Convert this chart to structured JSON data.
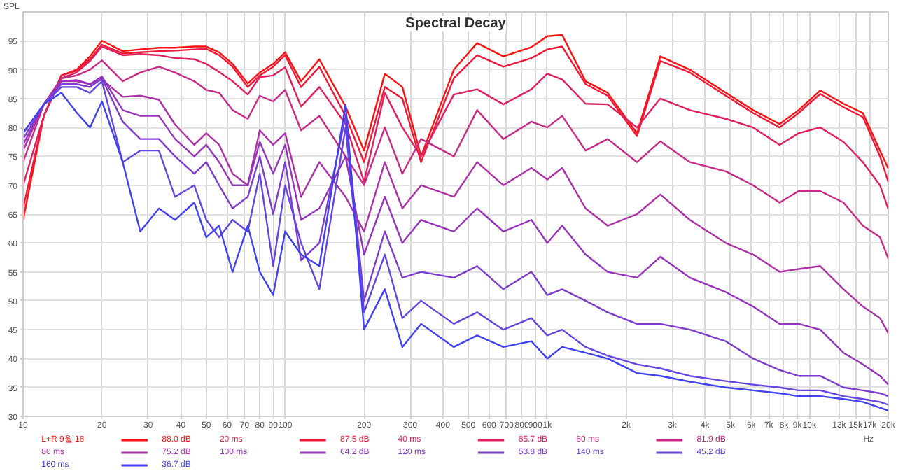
{
  "chart_data": {
    "type": "line",
    "title": "Spectral Decay",
    "ylabel": "SPL",
    "log": "x",
    "grid": true,
    "legend": "bottom",
    "marker": "none",
    "line_style": "solid",
    "xlim": [
      10,
      20000
    ],
    "ylim": [
      30,
      100
    ],
    "xticks": [
      10,
      20,
      30,
      40,
      50,
      60,
      70,
      80,
      90,
      100,
      200,
      300,
      400,
      500,
      600,
      700,
      800,
      900,
      {
        "value": 1000,
        "label": "1k"
      },
      {
        "value": 2000,
        "label": "2k"
      },
      {
        "value": 3000,
        "label": "3k"
      },
      {
        "value": 4000,
        "label": "4k"
      },
      {
        "value": 5000,
        "label": "5k"
      },
      {
        "value": 6000,
        "label": "6k"
      },
      {
        "value": 7000,
        "label": "7k"
      },
      {
        "value": 8000,
        "label": "8k"
      },
      {
        "value": 9000,
        "label": "9k"
      },
      {
        "value": 10000,
        "label": "10k"
      },
      {
        "value": 13000,
        "label": "13k"
      },
      {
        "value": 15000,
        "label": "15k"
      },
      {
        "value": 17000,
        "label": "17k"
      },
      {
        "value": 20000,
        "label": "20k"
      }
    ],
    "xlabel": "Hz",
    "yticks": [
      30,
      35,
      40,
      45,
      50,
      55,
      60,
      65,
      70,
      75,
      80,
      85,
      90,
      95
    ],
    "x": [
      10,
      12,
      14,
      16,
      18,
      20,
      24,
      28,
      33,
      38,
      45,
      50,
      56,
      63,
      72,
      80,
      90,
      100,
      115,
      135,
      170,
      200,
      240,
      280,
      330,
      440,
      540,
      680,
      870,
      1000,
      1140,
      1400,
      1700,
      2200,
      2700,
      3500,
      4800,
      6100,
      7700,
      9100,
      11000,
      13500,
      16000,
      18600,
      20000
    ],
    "annotations": [
      "88.0 dB",
      "87.5 dB",
      "85.7 dB",
      "81.9 dB",
      "75.2 dB",
      "64.2 dB",
      "53.8 dB",
      "45.2 dB",
      "36.7 dB"
    ],
    "series": [
      {
        "name": "L+R 9월 18",
        "color": "#ff1010",
        "values": [
          64,
          82,
          89,
          90,
          92.3,
          95,
          93.2,
          93.5,
          93.8,
          93.8,
          94,
          94,
          93,
          91,
          87.6,
          89.5,
          91,
          93,
          88,
          91.8,
          83.6,
          76,
          89.3,
          87,
          75,
          90,
          94.6,
          92.3,
          93.9,
          95.8,
          96,
          88,
          86,
          79,
          92.3,
          90,
          86,
          83,
          80.6,
          83,
          86.4,
          84.1,
          82.5,
          76,
          72.9
        ]
      },
      {
        "name": "20 ms",
        "color": "#f01838",
        "values": [
          66,
          82,
          89,
          89.8,
          91.8,
          94.3,
          92.8,
          93,
          93.2,
          93.3,
          93.5,
          93.6,
          92.5,
          90.5,
          87,
          89,
          90.5,
          92.5,
          87,
          90.5,
          82,
          74,
          87,
          85,
          74,
          88.5,
          92.5,
          90.5,
          92,
          93.5,
          94,
          87.5,
          85.5,
          78.5,
          91.5,
          89.5,
          85.5,
          82.5,
          80,
          82.5,
          85.8,
          83.5,
          81.8,
          75,
          70.6
        ]
      },
      {
        "name": "40 ms",
        "color": "#e0205e",
        "values": [
          70,
          82,
          88.5,
          89.5,
          91.5,
          94,
          92.5,
          92.7,
          92.5,
          92,
          91.8,
          91,
          89.6,
          88,
          85.7,
          88.7,
          89,
          90.4,
          83.6,
          87,
          80.6,
          70.6,
          86,
          80,
          75,
          85.7,
          86.6,
          84,
          86.6,
          89.3,
          88.3,
          84.1,
          84,
          80,
          85,
          83,
          81.5,
          80,
          77,
          79,
          80,
          77.5,
          74,
          70,
          65.9
        ]
      },
      {
        "name": "60 ms",
        "color": "#c82a86",
        "values": [
          74,
          84,
          88.5,
          89,
          90,
          91.6,
          88,
          89.5,
          90.5,
          89.5,
          88,
          86.5,
          86,
          83,
          81.5,
          85.5,
          84.5,
          86.5,
          79.5,
          82,
          75,
          70,
          80,
          72,
          78,
          75,
          83,
          78,
          81,
          80,
          82,
          76,
          78,
          74,
          77.6,
          74,
          72.4,
          70,
          67,
          69,
          69,
          67,
          63,
          61,
          57.3
        ]
      },
      {
        "name": "80 ms",
        "color": "#ad30a6",
        "values": [
          76,
          84,
          88,
          88,
          87.5,
          88.3,
          85.3,
          85.5,
          84.8,
          80.5,
          77,
          79,
          77,
          72,
          70,
          79.5,
          77,
          79,
          68,
          74,
          68,
          62,
          74,
          66,
          70,
          68,
          74,
          70,
          73,
          71,
          73,
          66,
          63,
          65,
          68.4,
          64,
          60,
          58,
          55,
          55.5,
          56,
          52,
          49,
          47,
          44.4
        ]
      },
      {
        "name": "100 ms",
        "color": "#9634bd",
        "values": [
          77,
          84,
          88,
          88.2,
          87.5,
          88.8,
          83,
          82,
          82,
          78,
          75,
          77,
          74,
          70,
          70,
          77.5,
          72,
          77,
          64,
          66,
          75,
          58,
          68,
          60,
          64,
          62,
          66,
          62,
          64,
          60,
          63,
          58,
          55,
          54,
          57.6,
          54,
          51.5,
          49,
          46,
          46,
          45,
          41,
          39,
          37,
          35.5
        ]
      },
      {
        "name": "120 ms",
        "color": "#7e3ccf",
        "values": [
          78,
          84,
          87.5,
          87.5,
          87,
          88.5,
          81,
          78,
          78,
          75,
          72,
          74,
          70,
          66,
          68,
          75,
          65,
          74,
          57,
          60,
          82,
          50,
          62,
          54,
          55,
          54,
          56,
          52,
          55,
          51,
          52,
          50,
          48,
          46,
          46,
          45,
          43,
          40,
          38,
          37,
          37,
          35,
          34.5,
          34,
          33.5
        ]
      },
      {
        "name": "140 ms",
        "color": "#6644e0",
        "values": [
          79,
          84,
          87,
          87,
          86,
          88,
          74,
          76,
          76,
          68,
          70,
          64,
          61,
          64,
          62,
          72,
          56,
          70,
          60,
          52,
          80,
          48,
          58,
          47,
          50,
          46,
          48,
          45,
          47,
          44,
          45,
          42,
          40.5,
          39,
          38.3,
          37,
          36.1,
          35.5,
          35,
          34.5,
          34.5,
          33.5,
          33,
          32.5,
          32
        ]
      },
      {
        "name": "160 ms",
        "color": "#4040f4",
        "values": [
          79,
          84,
          86,
          82.6,
          80,
          84.5,
          74,
          62,
          66,
          64,
          67,
          61,
          63,
          55,
          63,
          55,
          51,
          62,
          58,
          56,
          84,
          45,
          52,
          42,
          46,
          42,
          44,
          42,
          43,
          40,
          42,
          41,
          40,
          37.5,
          37,
          36,
          35,
          34.5,
          34,
          33.5,
          33.5,
          33,
          32.5,
          31.5,
          31
        ]
      }
    ]
  }
}
